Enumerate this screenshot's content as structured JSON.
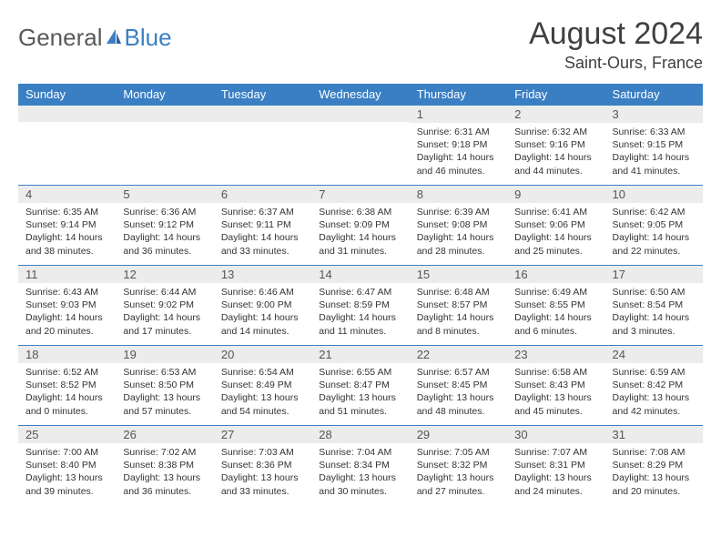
{
  "brand": {
    "part1": "General",
    "part2": "Blue"
  },
  "title": "August 2024",
  "location": "Saint-Ours, France",
  "colors": {
    "header_bg": "#3a7fc4",
    "header_text": "#ffffff",
    "daynum_bg": "#ececec",
    "border": "#3a7fc4",
    "text": "#333333",
    "title_text": "#404040"
  },
  "fonts": {
    "title_size": 34,
    "location_size": 18,
    "header_size": 13,
    "body_size": 10.5
  },
  "dayHeaders": [
    "Sunday",
    "Monday",
    "Tuesday",
    "Wednesday",
    "Thursday",
    "Friday",
    "Saturday"
  ],
  "weeks": [
    [
      null,
      null,
      null,
      null,
      {
        "n": "1",
        "sr": "Sunrise: 6:31 AM",
        "ss": "Sunset: 9:18 PM",
        "d1": "Daylight: 14 hours",
        "d2": "and 46 minutes."
      },
      {
        "n": "2",
        "sr": "Sunrise: 6:32 AM",
        "ss": "Sunset: 9:16 PM",
        "d1": "Daylight: 14 hours",
        "d2": "and 44 minutes."
      },
      {
        "n": "3",
        "sr": "Sunrise: 6:33 AM",
        "ss": "Sunset: 9:15 PM",
        "d1": "Daylight: 14 hours",
        "d2": "and 41 minutes."
      }
    ],
    [
      {
        "n": "4",
        "sr": "Sunrise: 6:35 AM",
        "ss": "Sunset: 9:14 PM",
        "d1": "Daylight: 14 hours",
        "d2": "and 38 minutes."
      },
      {
        "n": "5",
        "sr": "Sunrise: 6:36 AM",
        "ss": "Sunset: 9:12 PM",
        "d1": "Daylight: 14 hours",
        "d2": "and 36 minutes."
      },
      {
        "n": "6",
        "sr": "Sunrise: 6:37 AM",
        "ss": "Sunset: 9:11 PM",
        "d1": "Daylight: 14 hours",
        "d2": "and 33 minutes."
      },
      {
        "n": "7",
        "sr": "Sunrise: 6:38 AM",
        "ss": "Sunset: 9:09 PM",
        "d1": "Daylight: 14 hours",
        "d2": "and 31 minutes."
      },
      {
        "n": "8",
        "sr": "Sunrise: 6:39 AM",
        "ss": "Sunset: 9:08 PM",
        "d1": "Daylight: 14 hours",
        "d2": "and 28 minutes."
      },
      {
        "n": "9",
        "sr": "Sunrise: 6:41 AM",
        "ss": "Sunset: 9:06 PM",
        "d1": "Daylight: 14 hours",
        "d2": "and 25 minutes."
      },
      {
        "n": "10",
        "sr": "Sunrise: 6:42 AM",
        "ss": "Sunset: 9:05 PM",
        "d1": "Daylight: 14 hours",
        "d2": "and 22 minutes."
      }
    ],
    [
      {
        "n": "11",
        "sr": "Sunrise: 6:43 AM",
        "ss": "Sunset: 9:03 PM",
        "d1": "Daylight: 14 hours",
        "d2": "and 20 minutes."
      },
      {
        "n": "12",
        "sr": "Sunrise: 6:44 AM",
        "ss": "Sunset: 9:02 PM",
        "d1": "Daylight: 14 hours",
        "d2": "and 17 minutes."
      },
      {
        "n": "13",
        "sr": "Sunrise: 6:46 AM",
        "ss": "Sunset: 9:00 PM",
        "d1": "Daylight: 14 hours",
        "d2": "and 14 minutes."
      },
      {
        "n": "14",
        "sr": "Sunrise: 6:47 AM",
        "ss": "Sunset: 8:59 PM",
        "d1": "Daylight: 14 hours",
        "d2": "and 11 minutes."
      },
      {
        "n": "15",
        "sr": "Sunrise: 6:48 AM",
        "ss": "Sunset: 8:57 PM",
        "d1": "Daylight: 14 hours",
        "d2": "and 8 minutes."
      },
      {
        "n": "16",
        "sr": "Sunrise: 6:49 AM",
        "ss": "Sunset: 8:55 PM",
        "d1": "Daylight: 14 hours",
        "d2": "and 6 minutes."
      },
      {
        "n": "17",
        "sr": "Sunrise: 6:50 AM",
        "ss": "Sunset: 8:54 PM",
        "d1": "Daylight: 14 hours",
        "d2": "and 3 minutes."
      }
    ],
    [
      {
        "n": "18",
        "sr": "Sunrise: 6:52 AM",
        "ss": "Sunset: 8:52 PM",
        "d1": "Daylight: 14 hours",
        "d2": "and 0 minutes."
      },
      {
        "n": "19",
        "sr": "Sunrise: 6:53 AM",
        "ss": "Sunset: 8:50 PM",
        "d1": "Daylight: 13 hours",
        "d2": "and 57 minutes."
      },
      {
        "n": "20",
        "sr": "Sunrise: 6:54 AM",
        "ss": "Sunset: 8:49 PM",
        "d1": "Daylight: 13 hours",
        "d2": "and 54 minutes."
      },
      {
        "n": "21",
        "sr": "Sunrise: 6:55 AM",
        "ss": "Sunset: 8:47 PM",
        "d1": "Daylight: 13 hours",
        "d2": "and 51 minutes."
      },
      {
        "n": "22",
        "sr": "Sunrise: 6:57 AM",
        "ss": "Sunset: 8:45 PM",
        "d1": "Daylight: 13 hours",
        "d2": "and 48 minutes."
      },
      {
        "n": "23",
        "sr": "Sunrise: 6:58 AM",
        "ss": "Sunset: 8:43 PM",
        "d1": "Daylight: 13 hours",
        "d2": "and 45 minutes."
      },
      {
        "n": "24",
        "sr": "Sunrise: 6:59 AM",
        "ss": "Sunset: 8:42 PM",
        "d1": "Daylight: 13 hours",
        "d2": "and 42 minutes."
      }
    ],
    [
      {
        "n": "25",
        "sr": "Sunrise: 7:00 AM",
        "ss": "Sunset: 8:40 PM",
        "d1": "Daylight: 13 hours",
        "d2": "and 39 minutes."
      },
      {
        "n": "26",
        "sr": "Sunrise: 7:02 AM",
        "ss": "Sunset: 8:38 PM",
        "d1": "Daylight: 13 hours",
        "d2": "and 36 minutes."
      },
      {
        "n": "27",
        "sr": "Sunrise: 7:03 AM",
        "ss": "Sunset: 8:36 PM",
        "d1": "Daylight: 13 hours",
        "d2": "and 33 minutes."
      },
      {
        "n": "28",
        "sr": "Sunrise: 7:04 AM",
        "ss": "Sunset: 8:34 PM",
        "d1": "Daylight: 13 hours",
        "d2": "and 30 minutes."
      },
      {
        "n": "29",
        "sr": "Sunrise: 7:05 AM",
        "ss": "Sunset: 8:32 PM",
        "d1": "Daylight: 13 hours",
        "d2": "and 27 minutes."
      },
      {
        "n": "30",
        "sr": "Sunrise: 7:07 AM",
        "ss": "Sunset: 8:31 PM",
        "d1": "Daylight: 13 hours",
        "d2": "and 24 minutes."
      },
      {
        "n": "31",
        "sr": "Sunrise: 7:08 AM",
        "ss": "Sunset: 8:29 PM",
        "d1": "Daylight: 13 hours",
        "d2": "and 20 minutes."
      }
    ]
  ]
}
